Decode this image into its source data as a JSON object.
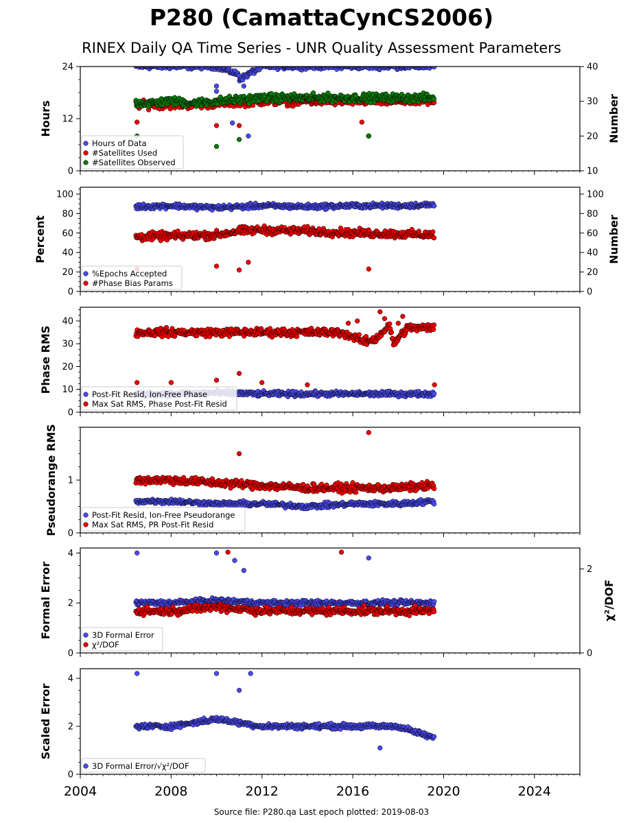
{
  "title": "P280 (CamattaCynCS2006)",
  "subtitle": "RINEX Daily QA Time Series - UNR Quality Assessment Parameters",
  "footer": "Source file: P280.qa Last epoch plotted: 2019-08-03",
  "chart_data": [
    {
      "type": "scatter",
      "panel": "hours-number",
      "ylabel": "Hours",
      "ylabel_right": "Number",
      "ylim": [
        0,
        24
      ],
      "yticks": [
        0,
        12,
        24
      ],
      "ylim_right": [
        10,
        40
      ],
      "yticks_right": [
        10,
        20,
        30,
        40
      ],
      "legend_position": "lower-left",
      "series": [
        {
          "name": "Hours of Data",
          "color": "#4a4af0",
          "axis": "left",
          "values": [
            [
              2006.5,
              24
            ],
            [
              2008.0,
              24
            ],
            [
              2010.0,
              24
            ],
            [
              2011.0,
              22
            ],
            [
              2012.0,
              24
            ],
            [
              2014.0,
              24
            ],
            [
              2016.0,
              24
            ],
            [
              2018.0,
              24
            ],
            [
              2019.6,
              24
            ],
            [
              2010.0,
              19.5
            ],
            [
              2010.0,
              18.3
            ],
            [
              2010.8,
              22.5
            ],
            [
              2011.0,
              21.0
            ],
            [
              2011.2,
              19.5
            ],
            [
              2010.7,
              11.0
            ],
            [
              2011.4,
              8.0
            ],
            [
              2016.7,
              8.0
            ]
          ]
        },
        {
          "name": "#Satellites Used",
          "color": "#ee0000",
          "axis": "right",
          "values": [
            [
              2006.5,
              24
            ],
            [
              2007.0,
              29
            ],
            [
              2008.0,
              29
            ],
            [
              2009.0,
              29
            ],
            [
              2010.0,
              23
            ],
            [
              2011.0,
              23
            ],
            [
              2012.0,
              30
            ],
            [
              2014.0,
              30
            ],
            [
              2016.0,
              30
            ],
            [
              2016.4,
              24
            ],
            [
              2016.7,
              20
            ],
            [
              2018.0,
              30
            ],
            [
              2019.6,
              30
            ]
          ]
        },
        {
          "name": "#Satellites Observed",
          "color": "#0a7a0a",
          "axis": "right",
          "values": [
            [
              2006.5,
              20
            ],
            [
              2007.0,
              29.5
            ],
            [
              2008.0,
              30
            ],
            [
              2009.0,
              29.5
            ],
            [
              2010.0,
              17
            ],
            [
              2011.0,
              19
            ],
            [
              2012.0,
              31
            ],
            [
              2014.0,
              31
            ],
            [
              2016.0,
              31
            ],
            [
              2016.7,
              20
            ],
            [
              2018.0,
              31
            ],
            [
              2019.6,
              31
            ]
          ]
        }
      ]
    },
    {
      "type": "scatter",
      "panel": "percent-number",
      "ylabel": "Percent",
      "ylabel_right": "Number",
      "ylim": [
        0,
        107
      ],
      "yticks": [
        0,
        20,
        40,
        60,
        80,
        100
      ],
      "ylim_right": [
        0,
        107
      ],
      "yticks_right": [
        0,
        20,
        40,
        60,
        80,
        100
      ],
      "legend_position": "lower-left",
      "series": [
        {
          "name": "%Epochs Accepted",
          "color": "#4a4af0",
          "axis": "left",
          "values": [
            [
              2006.5,
              87
            ],
            [
              2008.0,
              88
            ],
            [
              2010.0,
              86
            ],
            [
              2012.0,
              88
            ],
            [
              2014.0,
              87
            ],
            [
              2016.0,
              88
            ],
            [
              2018.0,
              88
            ],
            [
              2019.6,
              89
            ]
          ]
        },
        {
          "name": "#Phase Bias Params",
          "color": "#ee0000",
          "axis": "right",
          "values": [
            [
              2006.5,
              56
            ],
            [
              2008.0,
              57
            ],
            [
              2010.0,
              58
            ],
            [
              2011.0,
              62
            ],
            [
              2012.0,
              63
            ],
            [
              2014.0,
              62
            ],
            [
              2016.0,
              60
            ],
            [
              2018.0,
              59
            ],
            [
              2019.6,
              58
            ],
            [
              2006.5,
              23
            ],
            [
              2010.0,
              26
            ],
            [
              2011.0,
              22
            ],
            [
              2011.4,
              30
            ],
            [
              2016.7,
              23
            ]
          ]
        }
      ]
    },
    {
      "type": "scatter",
      "panel": "phase-rms",
      "ylabel": "Phase RMS",
      "ylim": [
        0,
        46
      ],
      "yticks": [
        0,
        10,
        20,
        30,
        40
      ],
      "legend_position": "lower-left",
      "series": [
        {
          "name": "Post-Fit Resid, Ion-Free Phase",
          "color": "#4a4af0",
          "values": [
            [
              2006.5,
              8
            ],
            [
              2008.0,
              8
            ],
            [
              2010.0,
              8.5
            ],
            [
              2012.0,
              8
            ],
            [
              2014.0,
              8
            ],
            [
              2016.0,
              8
            ],
            [
              2018.0,
              8
            ],
            [
              2019.6,
              8
            ]
          ]
        },
        {
          "name": "Max Sat RMS, Phase Post-Fit Resid",
          "color": "#ee0000",
          "values": [
            [
              2006.5,
              13
            ],
            [
              2008.0,
              13
            ],
            [
              2010.0,
              14
            ],
            [
              2011.0,
              17
            ],
            [
              2012.0,
              13
            ],
            [
              2014.0,
              12
            ],
            [
              2015.5,
              35
            ],
            [
              2015.8,
              39
            ],
            [
              2016.0,
              33
            ],
            [
              2016.2,
              40
            ],
            [
              2016.5,
              31
            ],
            [
              2017.0,
              32
            ],
            [
              2017.2,
              44
            ],
            [
              2017.4,
              41
            ],
            [
              2017.6,
              38
            ],
            [
              2017.8,
              30
            ],
            [
              2018.0,
              39
            ],
            [
              2018.2,
              42
            ],
            [
              2018.4,
              37
            ],
            [
              2019.6,
              12
            ]
          ]
        }
      ]
    },
    {
      "type": "scatter",
      "panel": "pseudorange-rms",
      "ylabel": "Pseudorange RMS",
      "ylim": [
        0,
        2
      ],
      "yticks": [
        0,
        1
      ],
      "legend_position": "lower-left",
      "series": [
        {
          "name": "Post-Fit Resid, Ion-Free Pseudorange",
          "color": "#4a4af0",
          "values": [
            [
              2006.5,
              0.6
            ],
            [
              2008.0,
              0.6
            ],
            [
              2010.0,
              0.55
            ],
            [
              2012.0,
              0.55
            ],
            [
              2014.0,
              0.5
            ],
            [
              2016.0,
              0.55
            ],
            [
              2018.0,
              0.55
            ],
            [
              2019.6,
              0.6
            ]
          ]
        },
        {
          "name": "Max Sat RMS, PR Post-Fit Resid",
          "color": "#ee0000",
          "values": [
            [
              2006.5,
              1.0
            ],
            [
              2008.0,
              1.0
            ],
            [
              2010.0,
              0.95
            ],
            [
              2011.0,
              1.5
            ],
            [
              2012.0,
              0.9
            ],
            [
              2014.0,
              0.85
            ],
            [
              2016.0,
              0.85
            ],
            [
              2016.7,
              1.9
            ],
            [
              2018.0,
              0.85
            ],
            [
              2019.6,
              0.9
            ]
          ]
        }
      ]
    },
    {
      "type": "scatter",
      "panel": "formal-error",
      "ylabel": "Formal Error",
      "ylabel_right": "χ²/DOF",
      "ylim": [
        0,
        4.2
      ],
      "yticks": [
        0,
        2,
        4
      ],
      "ylim_right": [
        0,
        2.5
      ],
      "yticks_right": [
        0,
        2
      ],
      "legend_position": "lower-left",
      "series": [
        {
          "name": "3D Formal Error",
          "color": "#4a4af0",
          "axis": "left",
          "values": [
            [
              2006.5,
              2.0
            ],
            [
              2006.5,
              4.0
            ],
            [
              2008.0,
              2.0
            ],
            [
              2010.0,
              2.1
            ],
            [
              2010.0,
              4.0
            ],
            [
              2010.8,
              3.7
            ],
            [
              2011.2,
              3.3
            ],
            [
              2012.0,
              2.0
            ],
            [
              2014.0,
              2.0
            ],
            [
              2016.0,
              2.0
            ],
            [
              2016.7,
              3.8
            ],
            [
              2018.0,
              2.0
            ],
            [
              2019.6,
              2.0
            ]
          ]
        },
        {
          "name": "χ²/DOF",
          "color": "#ee0000",
          "axis": "right",
          "values": [
            [
              2006.5,
              1.0
            ],
            [
              2008.0,
              1.0
            ],
            [
              2010.0,
              1.1
            ],
            [
              2010.5,
              2.4
            ],
            [
              2012.0,
              1.0
            ],
            [
              2014.0,
              1.0
            ],
            [
              2015.5,
              2.4
            ],
            [
              2016.0,
              1.0
            ],
            [
              2018.0,
              1.0
            ],
            [
              2019.6,
              1.0
            ]
          ]
        }
      ]
    },
    {
      "type": "scatter",
      "panel": "scaled-error",
      "ylabel": "Scaled Error",
      "ylim": [
        0,
        4.4
      ],
      "yticks": [
        0,
        2,
        4
      ],
      "legend_position": "lower-left",
      "series": [
        {
          "name": "3D Formal Error/√χ²/DOF",
          "color": "#4a4af0",
          "values": [
            [
              2006.5,
              2.0
            ],
            [
              2006.5,
              4.2
            ],
            [
              2008.0,
              2.0
            ],
            [
              2010.0,
              2.3
            ],
            [
              2010.0,
              4.2
            ],
            [
              2011.0,
              3.5
            ],
            [
              2011.5,
              4.2
            ],
            [
              2012.0,
              2.0
            ],
            [
              2014.0,
              2.0
            ],
            [
              2016.0,
              2.0
            ],
            [
              2017.2,
              1.1
            ],
            [
              2018.0,
              2.0
            ],
            [
              2019.6,
              1.5
            ]
          ]
        }
      ]
    }
  ],
  "x_axis": {
    "xlim": [
      2004,
      2026
    ],
    "ticks": [
      "2004",
      "2008",
      "2012",
      "2016",
      "2020",
      "2024"
    ]
  }
}
